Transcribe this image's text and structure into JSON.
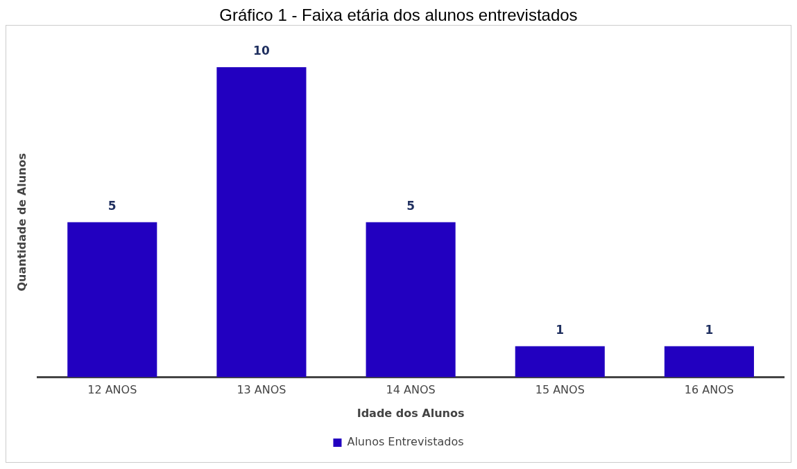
{
  "chart_data": {
    "type": "bar",
    "title": "Gráfico 1 - Faixa etária dos alunos entrevistados",
    "xlabel": "Idade dos Alunos",
    "ylabel": "Quantidade de Alunos",
    "categories": [
      "12 ANOS",
      "13 ANOS",
      "14 ANOS",
      "15 ANOS",
      "16 ANOS"
    ],
    "series": [
      {
        "name": "Alunos Entrevistados",
        "color": "#2200c0",
        "values": [
          5,
          10,
          5,
          1,
          1
        ]
      }
    ],
    "data_labels": true,
    "legend": "bottom",
    "grid": false
  }
}
